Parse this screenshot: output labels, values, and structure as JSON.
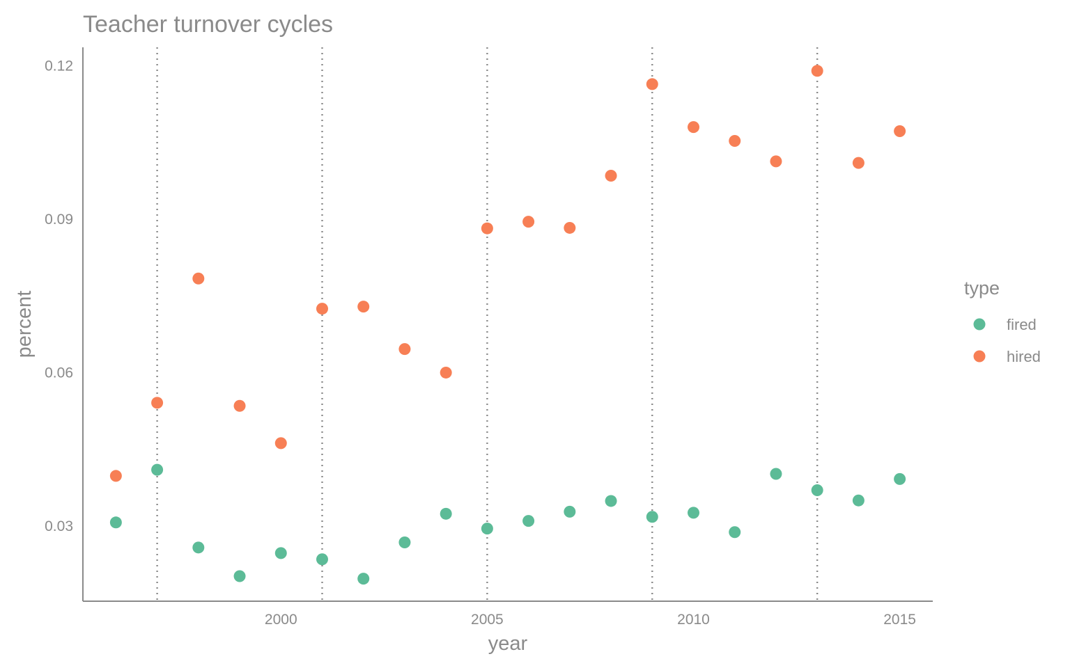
{
  "chart_data": {
    "type": "scatter",
    "title": "Teacher turnover cycles",
    "xlabel": "year",
    "ylabel": "percent",
    "xlim": [
      1995.2,
      2015.8
    ],
    "ylim": [
      0.0153,
      0.1236
    ],
    "x_ticks": [
      2000,
      2005,
      2010,
      2015
    ],
    "y_ticks": [
      0.03,
      0.06,
      0.09,
      0.12
    ],
    "y_tick_labels": [
      "0.03",
      "0.06",
      "0.09",
      "0.12"
    ],
    "vertical_lines": [
      1997,
      2001,
      2005,
      2009,
      2013
    ],
    "grid": false,
    "legend": {
      "title": "type",
      "position": "right"
    },
    "series": [
      {
        "name": "fired",
        "color": "#5cbb97",
        "points": [
          [
            1996,
            0.0307
          ],
          [
            1997,
            0.041
          ],
          [
            1998,
            0.0258
          ],
          [
            1999,
            0.0202
          ],
          [
            2000,
            0.0247
          ],
          [
            2001,
            0.0235
          ],
          [
            2002,
            0.0197
          ],
          [
            2003,
            0.0268
          ],
          [
            2004,
            0.0324
          ],
          [
            2005,
            0.0295
          ],
          [
            2006,
            0.031
          ],
          [
            2007,
            0.0328
          ],
          [
            2008,
            0.0349
          ],
          [
            2009,
            0.0318
          ],
          [
            2010,
            0.0326
          ],
          [
            2011,
            0.0288
          ],
          [
            2012,
            0.0402
          ],
          [
            2013,
            0.037
          ],
          [
            2014,
            0.035
          ],
          [
            2015,
            0.0392
          ]
        ]
      },
      {
        "name": "hired",
        "color": "#f77f55",
        "points": [
          [
            1996,
            0.0398
          ],
          [
            1997,
            0.0541
          ],
          [
            1998,
            0.0784
          ],
          [
            1999,
            0.0535
          ],
          [
            2000,
            0.0462
          ],
          [
            2001,
            0.0725
          ],
          [
            2002,
            0.0729
          ],
          [
            2003,
            0.0646
          ],
          [
            2004,
            0.06
          ],
          [
            2005,
            0.0882
          ],
          [
            2006,
            0.0895
          ],
          [
            2007,
            0.0883
          ],
          [
            2008,
            0.0985
          ],
          [
            2009,
            0.1164
          ],
          [
            2010,
            0.108
          ],
          [
            2011,
            0.1053
          ],
          [
            2012,
            0.1013
          ],
          [
            2013,
            0.119
          ],
          [
            2014,
            0.101
          ],
          [
            2015,
            0.1072
          ]
        ]
      }
    ]
  }
}
